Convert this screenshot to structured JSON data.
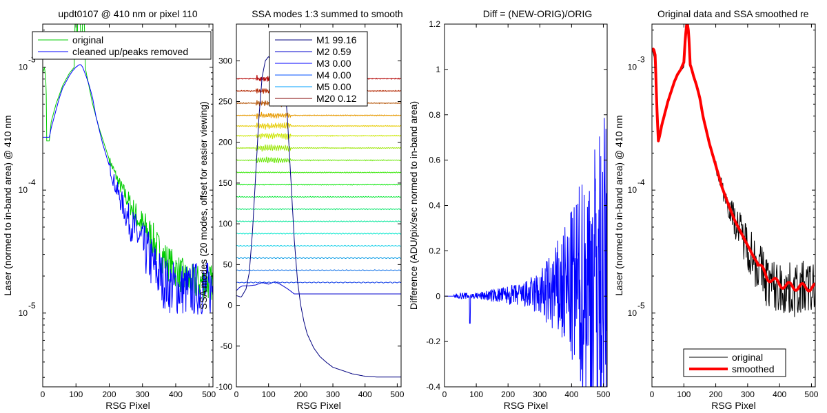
{
  "chart_data": [
    {
      "type": "line",
      "title": "updt0107 @ 410 nm or pixel 110",
      "xlabel": "RSG Pixel",
      "ylabel": "Laser (normed to in-band area) @ 410 nm",
      "xlim": [
        0,
        512
      ],
      "ylim_log10": [
        -5.6,
        -2.65
      ],
      "yscale": "log",
      "xticks": [
        "0",
        "100",
        "200",
        "300",
        "400",
        "500"
      ],
      "yticks": [
        {
          "base": "10",
          "exp": "-3",
          "log10": -3
        },
        {
          "base": "10",
          "exp": "-4",
          "log10": -4
        },
        {
          "base": "10",
          "exp": "-5",
          "log10": -5
        }
      ],
      "legend": {
        "position": "top",
        "entries": [
          {
            "label": "original",
            "color": "#00cc00"
          },
          {
            "label": "cleaned up/peaks removed",
            "color": "#0000ff"
          }
        ]
      },
      "series": [
        {
          "name": "original",
          "color": "#00cc00",
          "x": [
            0,
            5,
            10,
            12,
            15,
            20,
            25,
            40,
            60,
            80,
            95,
            97,
            100,
            103,
            105,
            110,
            113,
            116,
            120,
            125,
            128,
            131,
            135,
            150,
            170,
            200,
            230,
            260,
            290,
            320,
            350,
            380,
            400,
            420,
            440,
            460,
            480,
            500,
            512
          ],
          "y_log10": [
            -3.05,
            -3.0,
            -3.1,
            -3.6,
            -3.6,
            -3.6,
            -3.45,
            -3.3,
            -3.15,
            -3.05,
            -3.0,
            -2.6,
            -2.6,
            -3.0,
            -2.6,
            -2.6,
            -2.6,
            -3.0,
            -2.6,
            -2.6,
            -3.0,
            -3.05,
            -3.1,
            -3.3,
            -3.5,
            -3.75,
            -3.95,
            -4.1,
            -4.25,
            -4.35,
            -4.5,
            -4.6,
            -4.65,
            -4.7,
            -4.75,
            -4.75,
            -4.75,
            -4.75,
            -4.75
          ]
        },
        {
          "name": "cleaned up/peaks removed",
          "color": "#0000ff",
          "x": [
            0,
            10,
            20,
            25,
            30,
            40,
            50,
            60,
            70,
            80,
            90,
            100,
            110,
            115,
            120,
            130,
            140,
            150,
            160,
            180,
            200,
            220,
            240,
            260,
            280,
            300,
            320,
            340,
            360,
            380,
            400,
            420,
            440,
            460,
            480,
            500,
            512
          ],
          "y_log10": [
            -3.57,
            -3.57,
            -3.57,
            -3.5,
            -3.45,
            -3.35,
            -3.25,
            -3.17,
            -3.12,
            -3.07,
            -3.03,
            -3.0,
            -2.98,
            -2.98,
            -3.0,
            -3.07,
            -3.15,
            -3.25,
            -3.4,
            -3.62,
            -3.8,
            -3.98,
            -4.12,
            -4.25,
            -4.35,
            -4.45,
            -4.55,
            -4.65,
            -4.73,
            -4.78,
            -4.8,
            -4.8,
            -4.82,
            -4.8,
            -4.8,
            -4.8,
            -4.8
          ]
        }
      ]
    },
    {
      "type": "line",
      "title": "SSA modes 1:3 summed to smooth",
      "xlabel": "RSG Pixel",
      "ylabel": "SSA modes (20 modes, offset for easier viewing)",
      "xlim": [
        0,
        512
      ],
      "ylim": [
        -100,
        345
      ],
      "xticks": [
        "0",
        "100",
        "200",
        "300",
        "400",
        "500"
      ],
      "yticks": [
        "-100",
        "-50",
        "0",
        "50",
        "100",
        "150",
        "200",
        "250",
        "300"
      ],
      "legend": {
        "position": "top-center",
        "entries": [
          {
            "label": "M1 99.16",
            "color": "#000080"
          },
          {
            "label": "M2 0.59",
            "color": "#0000cd"
          },
          {
            "label": "M3 0.00",
            "color": "#0000ff"
          },
          {
            "label": "M4 0.00",
            "color": "#0050ff"
          },
          {
            "label": "M5 0.00",
            "color": "#00a0ff"
          },
          {
            "label": "M20 0.12",
            "color": "#800000"
          }
        ]
      },
      "mode_offsets": [
        13,
        28,
        43,
        58,
        73,
        88,
        103,
        118,
        133,
        148,
        163,
        178,
        193,
        208,
        220,
        233,
        248,
        263,
        278
      ],
      "series": [
        {
          "name": "M1",
          "color": "#000080",
          "x": [
            0,
            15,
            30,
            40,
            50,
            60,
            70,
            80,
            90,
            100,
            110,
            120,
            130,
            140,
            150,
            160,
            170,
            180,
            190,
            200,
            210,
            220,
            240,
            260,
            280,
            300,
            330,
            360,
            400,
            440,
            480,
            512
          ],
          "y": [
            12,
            10,
            20,
            40,
            90,
            160,
            230,
            280,
            300,
            305,
            300,
            300,
            300,
            300,
            280,
            220,
            150,
            80,
            30,
            0,
            -20,
            -35,
            -52,
            -63,
            -70,
            -76,
            -80,
            -84,
            -87,
            -88,
            -88,
            -88
          ]
        },
        {
          "name": "M2",
          "color": "#0000cd",
          "x": [
            0,
            10,
            20,
            40,
            60,
            80,
            100,
            120,
            140,
            160,
            180,
            200,
            250,
            300,
            350,
            400,
            450,
            512
          ],
          "y": [
            18,
            22,
            24,
            24,
            25,
            28,
            26,
            29,
            25,
            20,
            14,
            14,
            14,
            14,
            14,
            14,
            14,
            14
          ]
        }
      ]
    },
    {
      "type": "line",
      "title": "Diff = (NEW-ORIG)/ORIG",
      "xlabel": "RSG Pixel",
      "ylabel": "Difference (ADU/pix/sec normed to in-band area)",
      "xlim": [
        0,
        512
      ],
      "ylim": [
        -0.4,
        1.2
      ],
      "xticks": [
        "0",
        "100",
        "200",
        "300",
        "400",
        "500"
      ],
      "yticks": [
        "-0.4",
        "-0.2",
        "0",
        "0.2",
        "0.4",
        "0.6",
        "0.8",
        "1",
        "1.2"
      ],
      "series": [
        {
          "name": "",
          "color": "#0000ff",
          "x": [
            0,
            50,
            100,
            150,
            200,
            250,
            300,
            350,
            400,
            450,
            512
          ],
          "amplitude": [
            0.0,
            0.02,
            0.02,
            0.04,
            0.06,
            0.08,
            0.15,
            0.3,
            0.5,
            0.8,
            1.1
          ]
        }
      ]
    },
    {
      "type": "line",
      "title": "Original data and SSA smoothed re",
      "xlabel": "RSG Pixel",
      "ylabel": "Laser (normed to in-band area) @ 410 nm",
      "xlim": [
        0,
        512
      ],
      "ylim_log10": [
        -5.6,
        -2.65
      ],
      "yscale": "log",
      "xticks": [
        "0",
        "100",
        "200",
        "300",
        "400",
        "500"
      ],
      "yticks": [
        {
          "base": "10",
          "exp": "-3",
          "log10": -3
        },
        {
          "base": "10",
          "exp": "-4",
          "log10": -4
        },
        {
          "base": "10",
          "exp": "-5",
          "log10": -5
        }
      ],
      "legend": {
        "position": "bottom-center",
        "entries": [
          {
            "label": "original",
            "color": "#000000"
          },
          {
            "label": "smoothed",
            "color": "#ff0000"
          }
        ]
      },
      "series": [
        {
          "name": "original",
          "color": "#000000",
          "x": [
            0,
            10,
            20,
            30,
            40,
            50,
            60,
            70,
            80,
            90,
            100,
            110,
            120,
            130,
            140,
            150,
            160,
            180,
            200,
            220,
            240,
            260,
            280,
            300,
            320,
            340,
            360,
            380,
            400,
            420,
            440,
            460,
            480,
            500,
            512
          ],
          "y_log10": [
            -2.85,
            -2.95,
            -3.6,
            -3.5,
            -3.4,
            -3.3,
            -3.2,
            -3.12,
            -3.07,
            -3.03,
            -3.0,
            -2.65,
            -3.0,
            -3.07,
            -3.15,
            -3.25,
            -3.4,
            -3.62,
            -3.8,
            -3.98,
            -4.12,
            -4.25,
            -4.35,
            -4.45,
            -4.55,
            -4.65,
            -4.73,
            -4.78,
            -4.8,
            -4.8,
            -4.82,
            -4.8,
            -4.8,
            -4.8,
            -4.8
          ]
        },
        {
          "name": "smoothed",
          "color": "#ff0000",
          "x": [
            0,
            5,
            10,
            15,
            20,
            25,
            30,
            40,
            50,
            60,
            70,
            80,
            90,
            100,
            105,
            110,
            115,
            120,
            125,
            130,
            140,
            150,
            160,
            180,
            200,
            220,
            240,
            260,
            280,
            300,
            320,
            340,
            360,
            380,
            400,
            420,
            440,
            460,
            480,
            500,
            512
          ],
          "y_log10": [
            -2.87,
            -2.85,
            -2.9,
            -3.3,
            -3.6,
            -3.55,
            -3.48,
            -3.38,
            -3.28,
            -3.2,
            -3.12,
            -3.06,
            -3.02,
            -2.96,
            -2.75,
            -2.62,
            -2.72,
            -2.98,
            -3.02,
            -3.07,
            -3.15,
            -3.25,
            -3.4,
            -3.62,
            -3.8,
            -3.98,
            -4.12,
            -4.25,
            -4.35,
            -4.45,
            -4.55,
            -4.63,
            -4.7,
            -4.74,
            -4.76,
            -4.78,
            -4.78,
            -4.79,
            -4.79,
            -4.79,
            -4.79
          ]
        }
      ]
    }
  ]
}
